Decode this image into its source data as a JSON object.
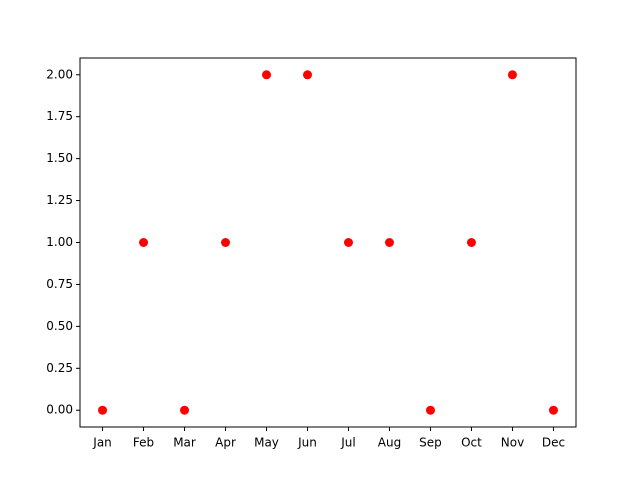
{
  "chart_data": {
    "type": "scatter",
    "categories": [
      "Jan",
      "Feb",
      "Mar",
      "Apr",
      "May",
      "Jun",
      "Jul",
      "Aug",
      "Sep",
      "Oct",
      "Nov",
      "Dec"
    ],
    "values": [
      0,
      1,
      0,
      1,
      2,
      2,
      1,
      1,
      0,
      1,
      2,
      0
    ],
    "color": "red",
    "ylim": [
      -0.1,
      2.1
    ],
    "yticks": [
      {
        "value": 0,
        "label": "0.00"
      },
      {
        "value": 0.25,
        "label": "0.25"
      },
      {
        "value": 0.5,
        "label": "0.50"
      },
      {
        "value": 0.75,
        "label": "0.75"
      },
      {
        "value": 1,
        "label": "1.00"
      },
      {
        "value": 1.25,
        "label": "1.25"
      },
      {
        "value": 1.5,
        "label": "1.50"
      },
      {
        "value": 1.75,
        "label": "1.75"
      },
      {
        "value": 2,
        "label": "2.00"
      }
    ],
    "grid": false
  }
}
